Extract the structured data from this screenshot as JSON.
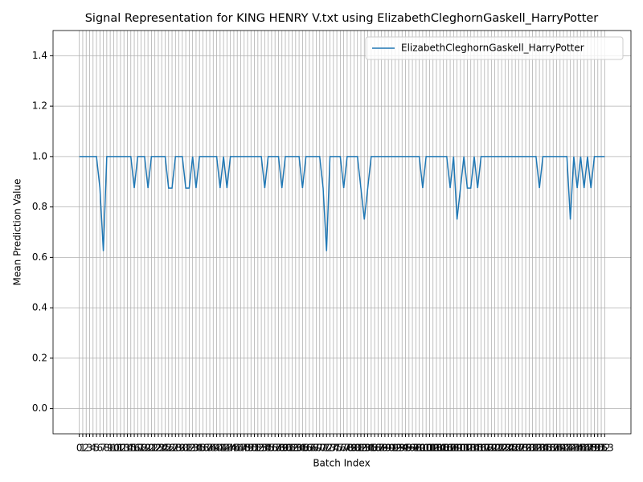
{
  "chart_data": {
    "type": "line",
    "title": "Signal Representation for KING HENRY V.txt using ElizabethCleghornGaskell_HarryPotter",
    "x_label": "Batch Index",
    "y_label": "Mean Prediction Value",
    "x": [
      0,
      1,
      2,
      3,
      4,
      5,
      6,
      7,
      8,
      9,
      10,
      11,
      12,
      13,
      14,
      15,
      16,
      17,
      18,
      19,
      20,
      21,
      22,
      23,
      24,
      25,
      26,
      27,
      28,
      29,
      30,
      31,
      32,
      33,
      34,
      35,
      36,
      37,
      38,
      39,
      40,
      41,
      42,
      43,
      44,
      45,
      46,
      47,
      48,
      49,
      50,
      51,
      52,
      53,
      54,
      55,
      56,
      57,
      58,
      59,
      60,
      61,
      62,
      63,
      64,
      65,
      66,
      67,
      68,
      69,
      70,
      71,
      72,
      73,
      74,
      75,
      76,
      77,
      78,
      79,
      80,
      81,
      82,
      83,
      84,
      85,
      86,
      87,
      88,
      89,
      90,
      91,
      92,
      93,
      94,
      95,
      96,
      97,
      98,
      99,
      100,
      101,
      102,
      103,
      104,
      105,
      106,
      107,
      108,
      109,
      110,
      111,
      112,
      113,
      114,
      115,
      116,
      117,
      118,
      119,
      120,
      121,
      122,
      123,
      124,
      125,
      126,
      127,
      128,
      129,
      130,
      131,
      132,
      133,
      134,
      135,
      136,
      137,
      138,
      139,
      140,
      141,
      142,
      143,
      144,
      145,
      146,
      147,
      148,
      149,
      150,
      151,
      152,
      153
    ],
    "series": [
      {
        "name": "ElizabethCleghornGaskell_HarryPotter",
        "color": "#1f77b4",
        "values": [
          1,
          1,
          1,
          1,
          1,
          1,
          0.875,
          0.625,
          1,
          1,
          1,
          1,
          1,
          1,
          1,
          1,
          0.875,
          1,
          1,
          1,
          0.875,
          1,
          1,
          1,
          1,
          1,
          0.875,
          0.875,
          1,
          1,
          1,
          0.875,
          0.875,
          1,
          0.875,
          1,
          1,
          1,
          1,
          1,
          1,
          0.875,
          1,
          0.875,
          1,
          1,
          1,
          1,
          1,
          1,
          1,
          1,
          1,
          1,
          0.875,
          1,
          1,
          1,
          1,
          0.875,
          1,
          1,
          1,
          1,
          1,
          0.875,
          1,
          1,
          1,
          1,
          1,
          0.875,
          0.625,
          1,
          1,
          1,
          1,
          0.875,
          1,
          1,
          1,
          1,
          0.875,
          0.75,
          0.875,
          1,
          1,
          1,
          1,
          1,
          1,
          1,
          1,
          1,
          1,
          1,
          1,
          1,
          1,
          1,
          0.875,
          1,
          1,
          1,
          1,
          1,
          1,
          1,
          0.875,
          1,
          0.75,
          0.875,
          1,
          0.875,
          0.875,
          1,
          0.875,
          1,
          1,
          1,
          1,
          1,
          1,
          1,
          1,
          1,
          1,
          1,
          1,
          1,
          1,
          1,
          1,
          1,
          0.875,
          1,
          1,
          1,
          1,
          1,
          1,
          1,
          1,
          0.75,
          1,
          0.875,
          1,
          0.875,
          1,
          0.875,
          1,
          1,
          1,
          1
        ]
      }
    ],
    "xlim": [
      -7.65,
      160.65
    ],
    "xticks": [
      0,
      1,
      2,
      3,
      4,
      5,
      6,
      7,
      8,
      9,
      10,
      11,
      12,
      13,
      14,
      15,
      16,
      17,
      18,
      19,
      20,
      21,
      22,
      23,
      24,
      25,
      26,
      27,
      28,
      29,
      30,
      31,
      32,
      33,
      34,
      35,
      36,
      37,
      38,
      39,
      40,
      41,
      42,
      43,
      44,
      45,
      46,
      47,
      48,
      49,
      50,
      51,
      52,
      53,
      54,
      55,
      56,
      57,
      58,
      59,
      60,
      61,
      62,
      63,
      64,
      65,
      66,
      67,
      68,
      69,
      70,
      71,
      72,
      73,
      74,
      75,
      76,
      77,
      78,
      79,
      80,
      81,
      82,
      83,
      84,
      85,
      86,
      87,
      88,
      89,
      90,
      91,
      92,
      93,
      94,
      95,
      96,
      97,
      98,
      99,
      100,
      101,
      102,
      103,
      104,
      105,
      106,
      107,
      108,
      109,
      110,
      111,
      112,
      113,
      114,
      115,
      116,
      117,
      118,
      119,
      120,
      121,
      122,
      123,
      124,
      125,
      126,
      127,
      128,
      129,
      130,
      131,
      132,
      133,
      134,
      135,
      136,
      137,
      138,
      139,
      140,
      141,
      142,
      143,
      144,
      145,
      146,
      147,
      148,
      149,
      150,
      151,
      152,
      153
    ],
    "ylim": [
      -0.1,
      1.5
    ],
    "yticks": [
      {
        "value": 0,
        "label": "0.0"
      },
      0.2,
      0.4,
      0.6,
      0.8,
      {
        "value": 1,
        "label": "1.0"
      },
      1.2,
      1.4
    ],
    "grid": true,
    "legend": "upper right"
  }
}
